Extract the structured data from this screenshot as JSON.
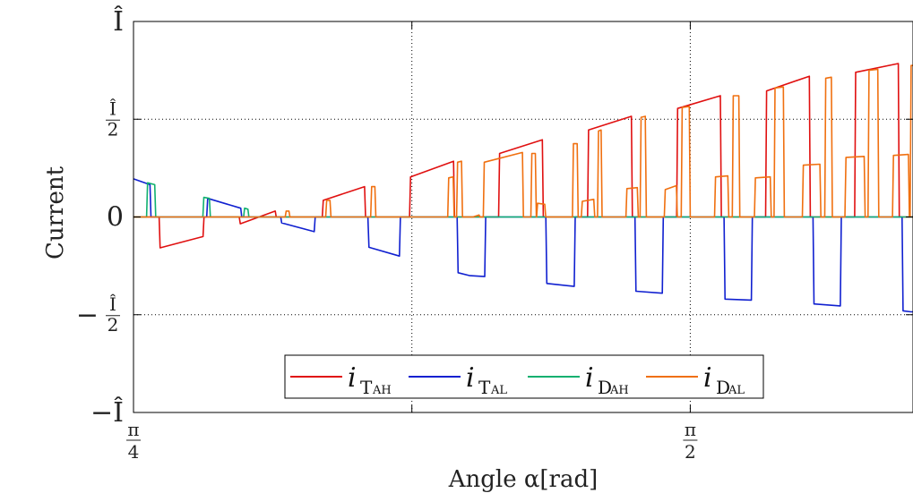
{
  "chart_data": {
    "type": "line",
    "title": "",
    "xlabel": "Angle α[rad]",
    "ylabel": "Current",
    "xlim": [
      0.7854,
      1.885
    ],
    "ylim": [
      -1.0,
      1.0
    ],
    "grid": true,
    "legend_position": "bottom-center",
    "x_ticks": [
      {
        "value": 0.7854,
        "num": "π",
        "den": "4"
      },
      {
        "value": 1.1781,
        "num": "",
        "den": ""
      },
      {
        "value": 1.5708,
        "num": "π",
        "den": "2"
      }
    ],
    "y_ticks": [
      {
        "value": 1.0,
        "label": "Î"
      },
      {
        "value": 0.5,
        "sign": "",
        "num": "Î",
        "den": "2"
      },
      {
        "value": 0.0,
        "label": "0"
      },
      {
        "value": -0.5,
        "sign": "−",
        "num": "Î",
        "den": "2"
      },
      {
        "value": -1.0,
        "label": "−Î"
      }
    ],
    "series": [
      {
        "name": "i_T_AH",
        "base": "i",
        "sub": "T",
        "subsub": "AH",
        "color": "#e01010",
        "points": [
          [
            0.7854,
            0
          ],
          [
            0.8215,
            0
          ],
          [
            0.8229,
            -0.158
          ],
          [
            0.8835,
            -0.1
          ],
          [
            0.8849,
            0
          ],
          [
            0.9346,
            0
          ],
          [
            0.936,
            -0.035
          ],
          [
            0.9854,
            0.03
          ],
          [
            0.9868,
            0
          ],
          [
            1.0517,
            0
          ],
          [
            1.0531,
            0.085
          ],
          [
            1.1113,
            0.155
          ],
          [
            1.1127,
            0
          ],
          [
            1.1748,
            0
          ],
          [
            1.1762,
            0.205
          ],
          [
            1.2369,
            0.285
          ],
          [
            1.2383,
            0
          ],
          [
            1.3004,
            0
          ],
          [
            1.3018,
            0.325
          ],
          [
            1.3621,
            0.395
          ],
          [
            1.3635,
            0
          ],
          [
            1.426,
            0
          ],
          [
            1.4274,
            0.445
          ],
          [
            1.4878,
            0.515
          ],
          [
            1.4892,
            0
          ],
          [
            1.5516,
            0
          ],
          [
            1.553,
            0.555
          ],
          [
            1.6133,
            0.62
          ],
          [
            1.6147,
            0
          ],
          [
            1.6771,
            0
          ],
          [
            1.6785,
            0.645
          ],
          [
            1.7388,
            0.72
          ],
          [
            1.7402,
            0
          ],
          [
            1.8027,
            0
          ],
          [
            1.8041,
            0.74
          ],
          [
            1.8643,
            0.785
          ],
          [
            1.8657,
            0
          ],
          [
            1.885,
            0
          ]
        ]
      },
      {
        "name": "i_T_AL",
        "base": "i",
        "sub": "T",
        "subsub": "AL",
        "color": "#1020d0",
        "points": [
          [
            0.7854,
            0.195
          ],
          [
            0.8087,
            0.165
          ],
          [
            0.8101,
            0
          ],
          [
            0.8887,
            0
          ],
          [
            0.8901,
            0.095
          ],
          [
            0.9367,
            0.045
          ],
          [
            0.9381,
            0
          ],
          [
            0.993,
            0
          ],
          [
            0.9944,
            -0.03
          ],
          [
            1.0403,
            -0.075
          ],
          [
            1.0417,
            0
          ],
          [
            1.1161,
            0
          ],
          [
            1.1175,
            -0.155
          ],
          [
            1.1605,
            -0.2
          ],
          [
            1.1619,
            0
          ],
          [
            1.2419,
            0
          ],
          [
            1.2433,
            -0.285
          ],
          [
            1.26,
            -0.3
          ],
          [
            1.2809,
            -0.305
          ],
          [
            1.2823,
            0
          ],
          [
            1.367,
            0
          ],
          [
            1.3684,
            -0.34
          ],
          [
            1.4071,
            -0.355
          ],
          [
            1.4085,
            0
          ],
          [
            1.4928,
            0
          ],
          [
            1.4942,
            -0.38
          ],
          [
            1.5314,
            -0.39
          ],
          [
            1.5328,
            0
          ],
          [
            1.6184,
            0
          ],
          [
            1.6198,
            -0.42
          ],
          [
            1.657,
            -0.425
          ],
          [
            1.6584,
            0
          ],
          [
            1.744,
            0
          ],
          [
            1.7454,
            -0.445
          ],
          [
            1.7825,
            -0.455
          ],
          [
            1.7839,
            0
          ],
          [
            1.8696,
            0
          ],
          [
            1.871,
            -0.48
          ],
          [
            1.882,
            -0.485
          ],
          [
            1.885,
            -0.485
          ]
        ]
      },
      {
        "name": "i_D_AH",
        "base": "i",
        "sub": "D",
        "subsub": "AH",
        "color": "#10b070",
        "points": [
          [
            0.7854,
            0
          ],
          [
            0.8038,
            0
          ],
          [
            0.8052,
            0.175
          ],
          [
            0.8153,
            0.165
          ],
          [
            0.8167,
            0
          ],
          [
            0.8832,
            0
          ],
          [
            0.8846,
            0.1
          ],
          [
            0.8925,
            0.095
          ],
          [
            0.8939,
            0
          ],
          [
            0.9407,
            0
          ],
          [
            0.9421,
            0.045
          ],
          [
            0.9468,
            0.04
          ],
          [
            0.9482,
            0
          ],
          [
            1.885,
            0
          ]
        ]
      },
      {
        "name": "i_D_AL",
        "base": "i",
        "sub": "D",
        "subsub": "AL",
        "color": "#f07010",
        "points": [
          [
            0.7854,
            0
          ],
          [
            0.9994,
            0
          ],
          [
            1.0008,
            0.03
          ],
          [
            1.0047,
            0.03
          ],
          [
            1.0061,
            0
          ],
          [
            1.0565,
            0
          ],
          [
            1.0579,
            0.085
          ],
          [
            1.0626,
            0.085
          ],
          [
            1.064,
            0
          ],
          [
            1.12,
            0
          ],
          [
            1.1214,
            0.155
          ],
          [
            1.1259,
            0.155
          ],
          [
            1.1273,
            0
          ],
          [
            1.2286,
            0
          ],
          [
            1.23,
            0.2
          ],
          [
            1.2363,
            0.205
          ],
          [
            1.2377,
            0
          ],
          [
            1.2412,
            0
          ],
          [
            1.2426,
            0.28
          ],
          [
            1.2481,
            0.285
          ],
          [
            1.2495,
            0
          ],
          [
            1.264,
            0
          ],
          [
            1.2729,
            0.01
          ],
          [
            1.2743,
            0
          ],
          [
            1.2788,
            0
          ],
          [
            1.2802,
            0.28
          ],
          [
            1.334,
            0.33
          ],
          [
            1.3354,
            0
          ],
          [
            1.3459,
            0
          ],
          [
            1.3473,
            0.325
          ],
          [
            1.3522,
            0.325
          ],
          [
            1.3536,
            0
          ],
          [
            1.354,
            0
          ],
          [
            1.3554,
            0.07
          ],
          [
            1.3655,
            0.065
          ],
          [
            1.3669,
            0
          ],
          [
            1.4046,
            0
          ],
          [
            1.406,
            0.375
          ],
          [
            1.4113,
            0.375
          ],
          [
            1.4127,
            0
          ],
          [
            1.4171,
            0
          ],
          [
            1.4185,
            0.08
          ],
          [
            1.4347,
            0.09
          ],
          [
            1.4361,
            0
          ],
          [
            1.44,
            0
          ],
          [
            1.4414,
            0.44
          ],
          [
            1.445,
            0.445
          ],
          [
            1.4464,
            0
          ],
          [
            1.48,
            0
          ],
          [
            1.4814,
            0.145
          ],
          [
            1.4961,
            0.15
          ],
          [
            1.4975,
            0
          ],
          [
            1.5,
            0
          ],
          [
            1.5014,
            0.51
          ],
          [
            1.5074,
            0.515
          ],
          [
            1.5088,
            0
          ],
          [
            1.5341,
            0
          ],
          [
            1.5355,
            0.14
          ],
          [
            1.5512,
            0.16
          ],
          [
            1.5526,
            0
          ],
          [
            1.558,
            0
          ],
          [
            1.5594,
            0.56
          ],
          [
            1.5694,
            0.565
          ],
          [
            1.5708,
            0
          ],
          [
            1.605,
            0
          ],
          [
            1.6064,
            0.205
          ],
          [
            1.6237,
            0.21
          ],
          [
            1.6251,
            0
          ],
          [
            1.6301,
            0
          ],
          [
            1.6315,
            0.62
          ],
          [
            1.6393,
            0.62
          ],
          [
            1.6407,
            0
          ],
          [
            1.6613,
            0
          ],
          [
            1.6627,
            0.2
          ],
          [
            1.6837,
            0.205
          ],
          [
            1.6851,
            0
          ],
          [
            1.689,
            0
          ],
          [
            1.6904,
            0.66
          ],
          [
            1.7021,
            0.665
          ],
          [
            1.7035,
            0
          ],
          [
            1.7289,
            0
          ],
          [
            1.7303,
            0.265
          ],
          [
            1.7537,
            0.27
          ],
          [
            1.7551,
            0
          ],
          [
            1.7605,
            0
          ],
          [
            1.7619,
            0.71
          ],
          [
            1.7698,
            0.715
          ],
          [
            1.7712,
            0
          ],
          [
            1.789,
            0
          ],
          [
            1.7904,
            0.305
          ],
          [
            1.8161,
            0.31
          ],
          [
            1.8175,
            0
          ],
          [
            1.8215,
            0
          ],
          [
            1.8229,
            0.75
          ],
          [
            1.8353,
            0.755
          ],
          [
            1.8367,
            0
          ],
          [
            1.856,
            0
          ],
          [
            1.8574,
            0.315
          ],
          [
            1.8786,
            0.32
          ],
          [
            1.88,
            0
          ],
          [
            1.881,
            0
          ],
          [
            1.8824,
            0.775
          ],
          [
            1.885,
            0.775
          ]
        ]
      }
    ]
  }
}
